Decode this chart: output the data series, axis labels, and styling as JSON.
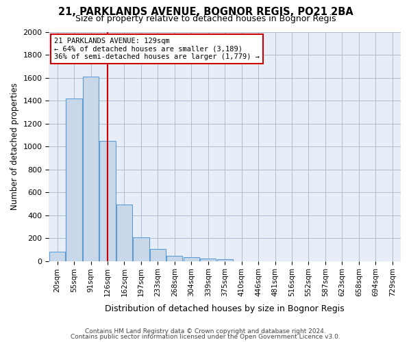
{
  "title_line1": "21, PARKLANDS AVENUE, BOGNOR REGIS, PO21 2BA",
  "title_line2": "Size of property relative to detached houses in Bognor Regis",
  "xlabel": "Distribution of detached houses by size in Bognor Regis",
  "ylabel": "Number of detached properties",
  "bin_labels": [
    "20sqm",
    "55sqm",
    "91sqm",
    "126sqm",
    "162sqm",
    "197sqm",
    "233sqm",
    "268sqm",
    "304sqm",
    "339sqm",
    "375sqm",
    "410sqm",
    "446sqm",
    "481sqm",
    "516sqm",
    "552sqm",
    "587sqm",
    "623sqm",
    "658sqm",
    "694sqm",
    "729sqm"
  ],
  "bar_values": [
    80,
    1420,
    1610,
    1050,
    490,
    205,
    105,
    48,
    35,
    22,
    15,
    0,
    0,
    0,
    0,
    0,
    0,
    0,
    0,
    0,
    0
  ],
  "bar_color": "#c8d8e8",
  "bar_edgecolor": "#5b9bd5",
  "vline_bin_index": 3,
  "vline_color": "#cc0000",
  "annotation_text": "21 PARKLANDS AVENUE: 129sqm\n← 64% of detached houses are smaller (3,189)\n36% of semi-detached houses are larger (1,779) →",
  "annotation_box_edgecolor": "#cc0000",
  "annotation_box_facecolor": "white",
  "ylim": [
    0,
    2000
  ],
  "yticks": [
    0,
    200,
    400,
    600,
    800,
    1000,
    1200,
    1400,
    1600,
    1800,
    2000
  ],
  "footer_line1": "Contains HM Land Registry data © Crown copyright and database right 2024.",
  "footer_line2": "Contains public sector information licensed under the Open Government Licence v3.0.",
  "background_color": "#e8eef8",
  "grid_color": "#b0bcd0"
}
